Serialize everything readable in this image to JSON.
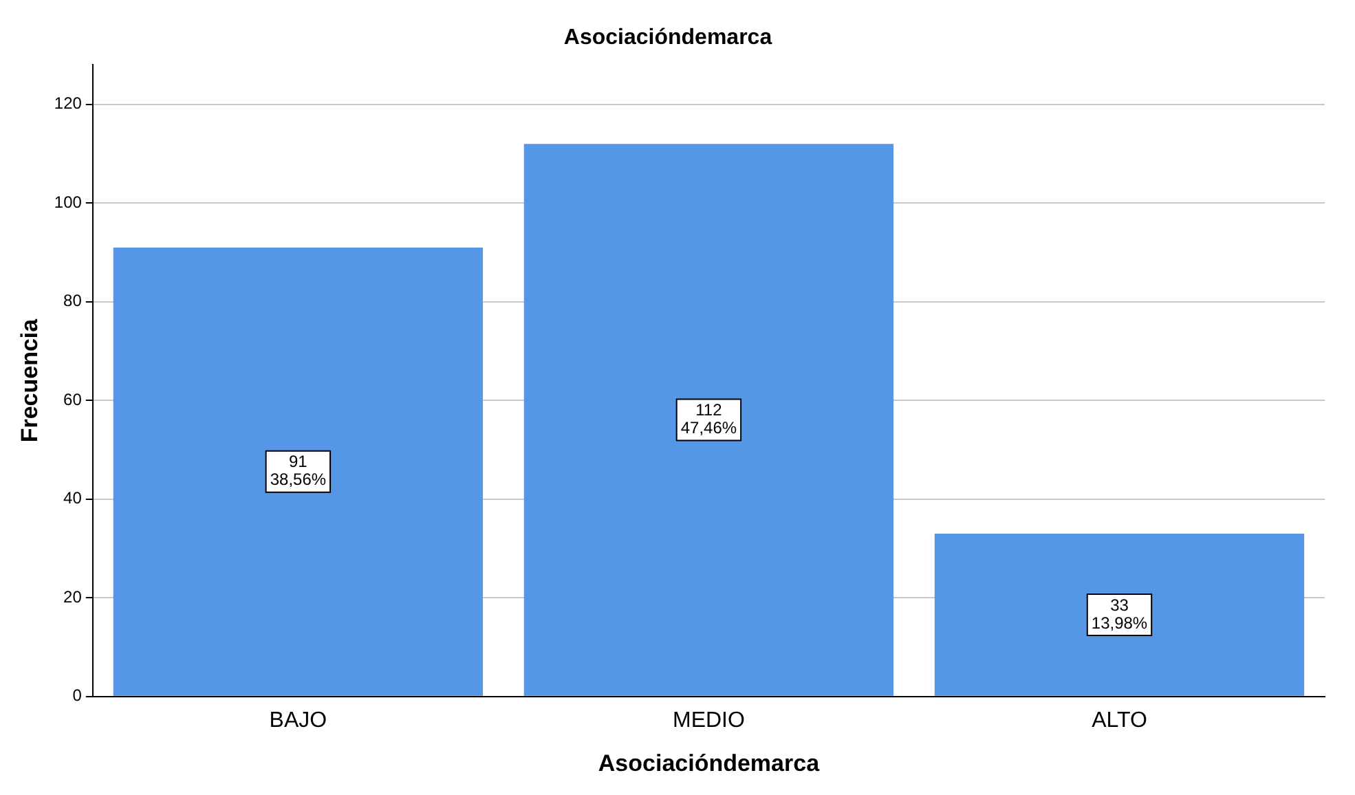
{
  "chart_data": {
    "type": "bar",
    "title": "Asociacióndemarca",
    "xlabel": "Asociacióndemarca",
    "ylabel": "Frecuencia",
    "categories": [
      "BAJO",
      "MEDIO",
      "ALTO"
    ],
    "values": [
      91,
      112,
      33
    ],
    "value_labels": [
      "91\n38,56%",
      "112\n47,46%",
      "33\n13,98%"
    ],
    "color": "#5596e6",
    "ylim": [
      0,
      128
    ],
    "yticks": [
      0,
      20,
      40,
      60,
      80,
      100,
      120
    ],
    "grid": "y",
    "legend": false
  }
}
